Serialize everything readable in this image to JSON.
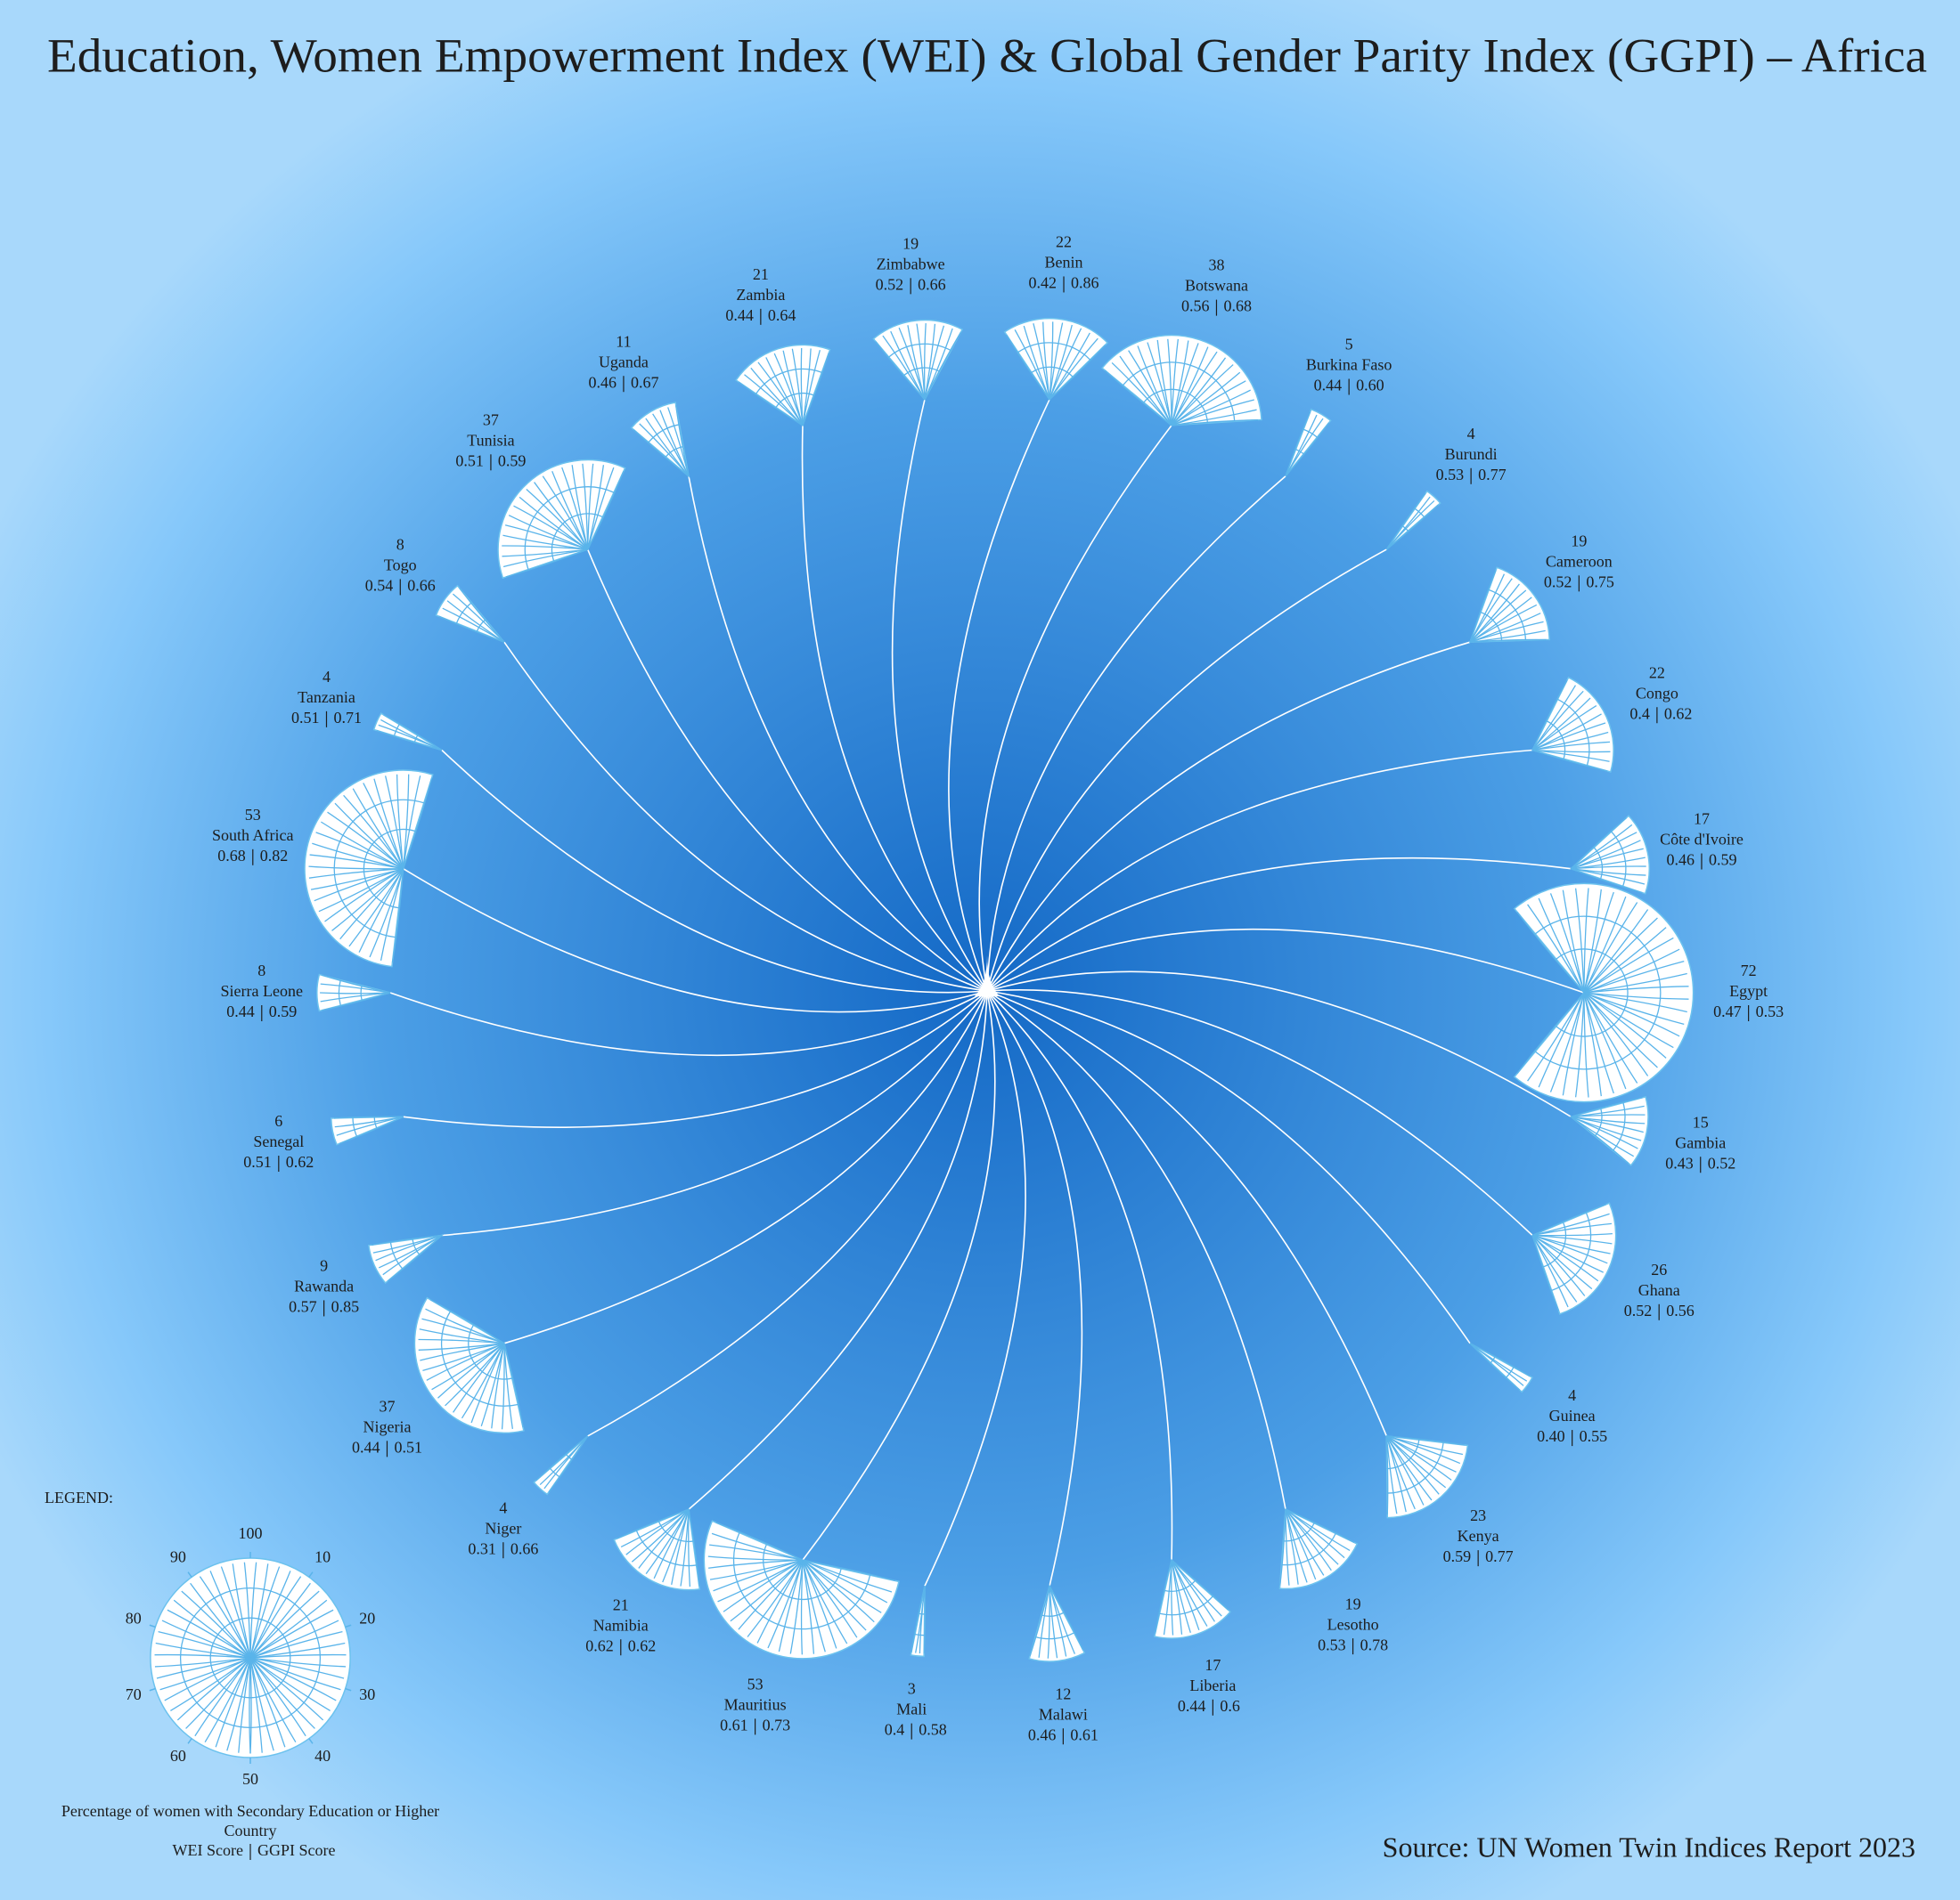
{
  "chart_data": {
    "type": "radial-fan",
    "title": "Education, Women Empowerment Index (WEI) & Global Gender Parity Index (GGPI) – Africa",
    "source": "Source: UN Women Twin Indices Report 2023",
    "categories": [
      "Zimbabwe",
      "Benin",
      "Botswana",
      "Burkina Faso",
      "Burundi",
      "Cameroon",
      "Congo",
      "Côte d'Ivoire",
      "Egypt",
      "Gambia",
      "Ghana",
      "Guinea",
      "Kenya",
      "Lesotho",
      "Liberia",
      "Malawi",
      "Mali",
      "Mauritius",
      "Namibia",
      "Niger",
      "Nigeria",
      "Rawanda",
      "Senegal",
      "Sierra Leone",
      "South Africa",
      "Tanzania",
      "Togo",
      "Tunisia",
      "Uganda",
      "Zambia"
    ],
    "series": [
      {
        "name": "Percentage of women with Secondary Education or Higher",
        "color": "#ffffff",
        "values": [
          19,
          22,
          38,
          5,
          4,
          19,
          22,
          17,
          72,
          15,
          26,
          4,
          23,
          19,
          17,
          12,
          3,
          53,
          21,
          4,
          37,
          9,
          6,
          8,
          53,
          4,
          8,
          37,
          11,
          21
        ]
      },
      {
        "name": "WEI Score",
        "color": "#1d1d1d",
        "values": [
          0.52,
          0.42,
          0.56,
          0.44,
          0.53,
          0.52,
          0.4,
          0.46,
          0.47,
          0.43,
          0.52,
          0.4,
          0.59,
          0.53,
          0.44,
          0.46,
          0.4,
          0.61,
          0.62,
          0.31,
          0.44,
          0.57,
          0.51,
          0.44,
          0.68,
          0.51,
          0.54,
          0.51,
          0.46,
          0.44
        ],
        "value_labels": [
          "0.52",
          "0.42",
          "0.56",
          "0.44",
          "0.53",
          "0.52",
          "0.4",
          "0.46",
          "0.47",
          "0.43",
          "0.52",
          "0.40",
          "0.59",
          "0.53",
          "0.44",
          "0.46",
          "0.4",
          "0.61",
          "0.62",
          "0.31",
          "0.44",
          "0.57",
          "0.51",
          "0.44",
          "0.68",
          "0.51",
          "0.54",
          "0.51",
          "0.46",
          "0.44"
        ]
      },
      {
        "name": "GGPI Score",
        "color": "#1d1d1d",
        "values": [
          0.66,
          0.86,
          0.68,
          0.6,
          0.77,
          0.75,
          0.62,
          0.59,
          0.53,
          0.52,
          0.56,
          0.55,
          0.77,
          0.78,
          0.6,
          0.61,
          0.58,
          0.73,
          0.62,
          0.66,
          0.51,
          0.85,
          0.62,
          0.59,
          0.82,
          0.71,
          0.66,
          0.59,
          0.67,
          0.64
        ],
        "value_labels": [
          "0.66",
          "0.86",
          "0.68",
          "0.60",
          "0.77",
          "0.75",
          "0.62",
          "0.59",
          "0.53",
          "0.52",
          "0.56",
          "0.55",
          "0.77",
          "0.78",
          "0.6",
          "0.61",
          "0.58",
          "0.73",
          "0.62",
          "0.66",
          "0.51",
          "0.85",
          "0.62",
          "0.59",
          "0.82",
          "0.71",
          "0.66",
          "0.59",
          "0.67",
          "0.64"
        ]
      }
    ],
    "legend": {
      "title": "LEGEND:",
      "country_label": "Country",
      "lim": [
        0,
        100
      ],
      "ticks": [
        10,
        20,
        30,
        40,
        50,
        60,
        70,
        80,
        90,
        100
      ]
    }
  }
}
